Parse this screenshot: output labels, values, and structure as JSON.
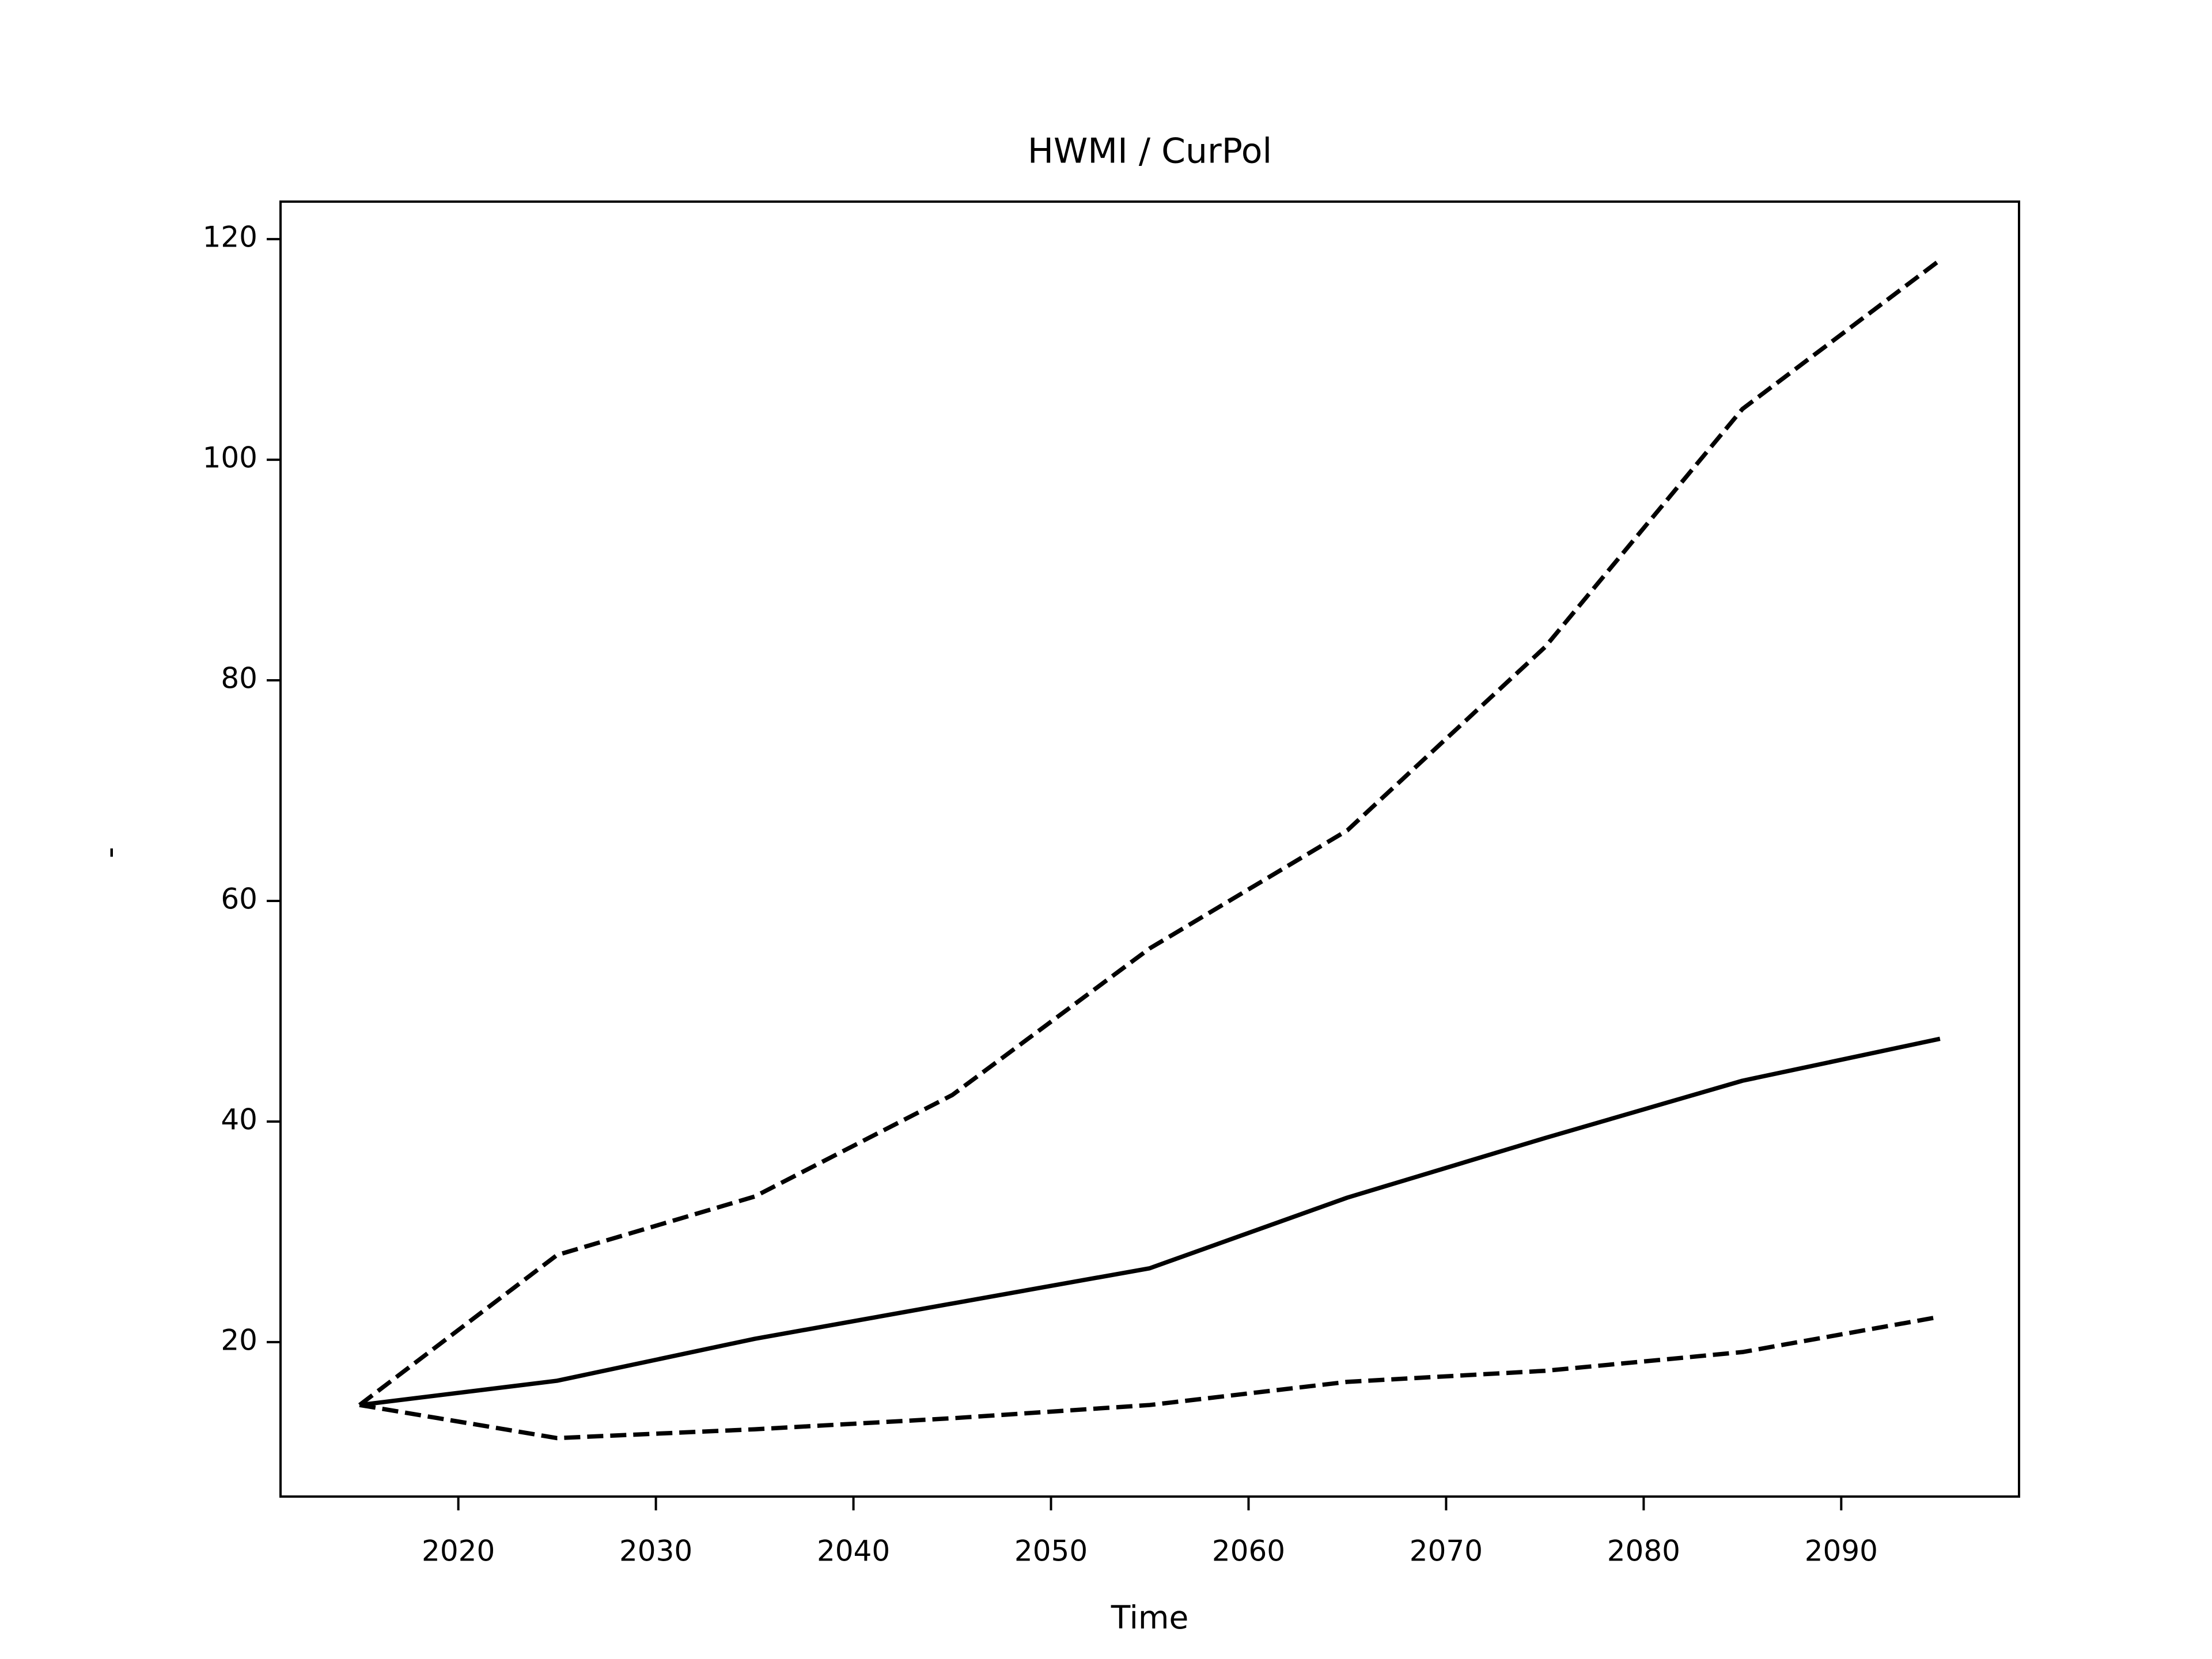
{
  "chart_data": {
    "type": "line",
    "title": "HWMI / CurPol",
    "xlabel": "Time",
    "ylabel": "-",
    "x": [
      2015,
      2025,
      2035,
      2045,
      2055,
      2065,
      2075,
      2085,
      2095
    ],
    "series": [
      {
        "color": "#000000",
        "linestyle": "dashed",
        "values": [
          14.3,
          27.9,
          33.2,
          42.4,
          55.7,
          66.4,
          83.0,
          104.6,
          118.1
        ]
      },
      {
        "color": "#000000",
        "linestyle": "solid",
        "values": [
          14.3,
          16.5,
          20.3,
          23.5,
          26.7,
          33.1,
          38.5,
          43.7,
          47.5
        ]
      },
      {
        "color": "#000000",
        "linestyle": "dashed",
        "values": [
          14.3,
          11.3,
          12.1,
          13.1,
          14.3,
          16.4,
          17.4,
          19.1,
          22.3
        ]
      }
    ],
    "xlim": [
      2011,
      2099
    ],
    "xticks": [
      2020,
      2030,
      2040,
      2050,
      2060,
      2070,
      2080,
      2090
    ],
    "ylim": [
      6.0,
      123.4
    ],
    "yticks": [
      20,
      40,
      60,
      80,
      100,
      120
    ],
    "grid": false
  }
}
